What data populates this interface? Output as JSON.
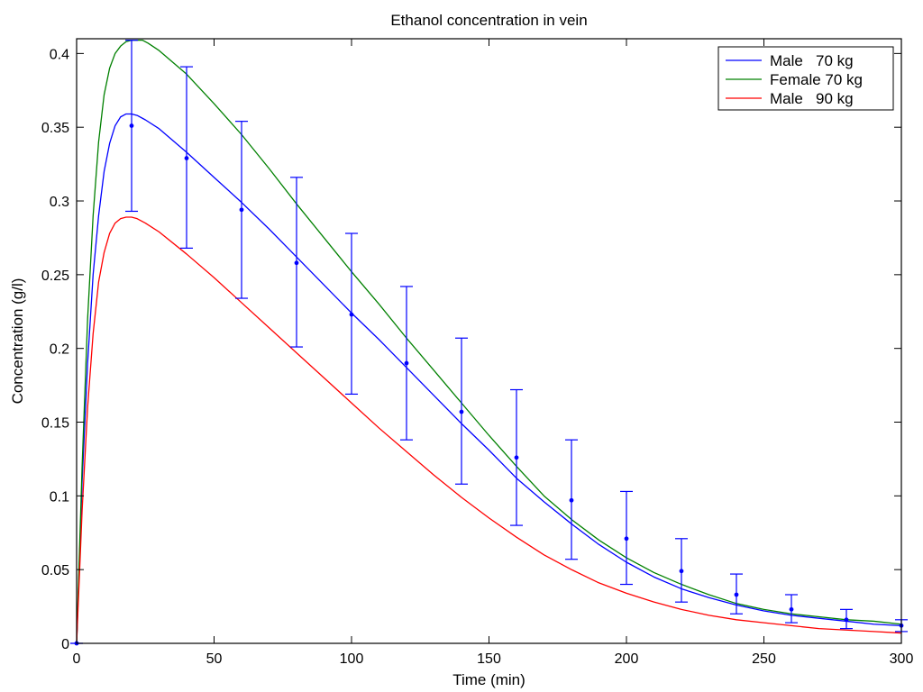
{
  "chart_data": {
    "type": "line",
    "title": "Ethanol  concentration in vein",
    "xlabel": "Time (min)",
    "ylabel": "Concentration (g/l)",
    "xlim": [
      0,
      300
    ],
    "ylim": [
      0,
      0.41
    ],
    "xticks": [
      0,
      50,
      100,
      150,
      200,
      250,
      300
    ],
    "xtick_labels": [
      "0",
      "50",
      "100",
      "150",
      "200",
      "250",
      "300"
    ],
    "yticks": [
      0,
      0.05,
      0.1,
      0.15,
      0.2,
      0.25,
      0.3,
      0.35,
      0.4
    ],
    "ytick_labels": [
      "0",
      "0.05",
      "0.1",
      "0.15",
      "0.2",
      "0.25",
      "0.3",
      "0.35",
      "0.4"
    ],
    "grid": false,
    "legend_position": "top-right",
    "series": [
      {
        "name": "Male   70 kg",
        "color": "#0000ff",
        "x": [
          0,
          2,
          4,
          6,
          8,
          10,
          12,
          14,
          16,
          18,
          20,
          22,
          25,
          30,
          40,
          50,
          60,
          70,
          80,
          90,
          100,
          110,
          120,
          130,
          140,
          150,
          160,
          170,
          180,
          190,
          200,
          210,
          220,
          230,
          240,
          250,
          260,
          270,
          280,
          290,
          300
        ],
        "y": [
          0,
          0.11,
          0.19,
          0.25,
          0.29,
          0.32,
          0.339,
          0.351,
          0.357,
          0.359,
          0.359,
          0.358,
          0.355,
          0.349,
          0.333,
          0.316,
          0.299,
          0.281,
          0.262,
          0.243,
          0.224,
          0.206,
          0.187,
          0.168,
          0.149,
          0.131,
          0.112,
          0.096,
          0.081,
          0.067,
          0.055,
          0.045,
          0.037,
          0.031,
          0.026,
          0.022,
          0.019,
          0.017,
          0.015,
          0.013,
          0.012
        ]
      },
      {
        "name": "Female 70 kg",
        "color": "#008000",
        "x": [
          0,
          2,
          4,
          6,
          8,
          10,
          12,
          14,
          16,
          18,
          20,
          22,
          24,
          26,
          30,
          40,
          50,
          60,
          70,
          80,
          90,
          100,
          110,
          120,
          130,
          140,
          150,
          160,
          170,
          180,
          190,
          200,
          210,
          220,
          230,
          240,
          250,
          260,
          270,
          280,
          290,
          300
        ],
        "y": [
          0,
          0.12,
          0.22,
          0.29,
          0.34,
          0.372,
          0.39,
          0.4,
          0.405,
          0.408,
          0.409,
          0.409,
          0.409,
          0.407,
          0.402,
          0.386,
          0.366,
          0.345,
          0.322,
          0.298,
          0.275,
          0.252,
          0.23,
          0.207,
          0.185,
          0.163,
          0.141,
          0.12,
          0.1,
          0.084,
          0.07,
          0.058,
          0.048,
          0.04,
          0.033,
          0.027,
          0.023,
          0.02,
          0.018,
          0.016,
          0.015,
          0.013
        ]
      },
      {
        "name": "Male   90 kg",
        "color": "#ff0000",
        "x": [
          0,
          2,
          4,
          6,
          8,
          10,
          12,
          14,
          16,
          18,
          20,
          22,
          25,
          30,
          40,
          50,
          60,
          70,
          80,
          90,
          100,
          110,
          120,
          130,
          140,
          150,
          160,
          170,
          180,
          190,
          200,
          210,
          220,
          230,
          240,
          250,
          260,
          270,
          280,
          290,
          300
        ],
        "y": [
          0,
          0.09,
          0.16,
          0.21,
          0.245,
          0.265,
          0.278,
          0.285,
          0.288,
          0.289,
          0.289,
          0.288,
          0.285,
          0.279,
          0.264,
          0.248,
          0.231,
          0.214,
          0.197,
          0.18,
          0.163,
          0.146,
          0.13,
          0.114,
          0.099,
          0.085,
          0.072,
          0.06,
          0.05,
          0.041,
          0.034,
          0.028,
          0.023,
          0.019,
          0.016,
          0.014,
          0.012,
          0.01,
          0.009,
          0.008,
          0.007
        ]
      }
    ],
    "measurements": {
      "color": "#0000ff",
      "x": [
        0,
        20,
        40,
        60,
        80,
        100,
        120,
        140,
        160,
        180,
        200,
        220,
        240,
        260,
        280,
        300
      ],
      "y": [
        0,
        0.351,
        0.329,
        0.294,
        0.258,
        0.223,
        0.19,
        0.157,
        0.126,
        0.097,
        0.071,
        0.049,
        0.033,
        0.023,
        0.016,
        0.012
      ],
      "lower": [
        0,
        0.293,
        0.268,
        0.234,
        0.201,
        0.169,
        0.138,
        0.108,
        0.08,
        0.057,
        0.04,
        0.028,
        0.02,
        0.014,
        0.01,
        0.008
      ],
      "upper": [
        0,
        0.409,
        0.391,
        0.354,
        0.316,
        0.278,
        0.242,
        0.207,
        0.172,
        0.138,
        0.103,
        0.071,
        0.047,
        0.033,
        0.023,
        0.016
      ]
    }
  }
}
